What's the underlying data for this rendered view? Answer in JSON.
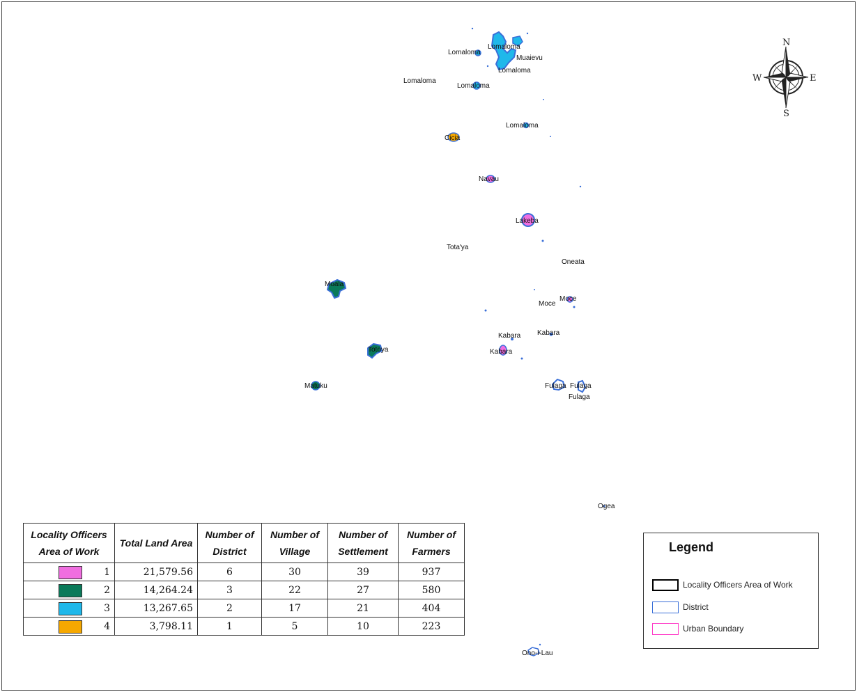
{
  "map": {
    "place_labels": [
      "Lomaloma",
      "Lomaloma",
      "Muaievu",
      "Lomaloma",
      "Lomaloma",
      "Lomaloma",
      "Lomaloma",
      "Cicia",
      "Navau",
      "Lakeba",
      "Tota'ya",
      "Oneata",
      "Moala",
      "Moce",
      "Moce",
      "Kabara",
      "Kabara",
      "Kabara",
      "Totoya",
      "Matuku",
      "Fulaga",
      "Fulaga",
      "Fulaga",
      "Ogea",
      "Ono-i-Lau"
    ],
    "colors": {
      "class_1": "#f06ee0",
      "class_2": "#0a7a5a",
      "class_3": "#1fb8ea",
      "class_4": "#f6a800",
      "district_outline": "#3a6fd8",
      "locality_outline": "#000000",
      "urban_outline": "#ff3cc8"
    }
  },
  "compass": {
    "n": "N",
    "s": "S",
    "e": "E",
    "w": "W"
  },
  "table": {
    "headers": [
      "Locality Officers Area of Work",
      "Total Land Area",
      "Number of District",
      "Number of Village",
      "Number of Settlement",
      "Number of Farmers"
    ],
    "rows": [
      {
        "class": "1",
        "color": "#f06ee0",
        "land_area": "21,579.56",
        "districts": "6",
        "villages": "30",
        "settlements": "39",
        "farmers": "937"
      },
      {
        "class": "2",
        "color": "#0a7a5a",
        "land_area": "14,264.24",
        "districts": "3",
        "villages": "22",
        "settlements": "27",
        "farmers": "580"
      },
      {
        "class": "3",
        "color": "#1fb8ea",
        "land_area": "13,267.65",
        "districts": "2",
        "villages": "17",
        "settlements": "21",
        "farmers": "404"
      },
      {
        "class": "4",
        "color": "#f6a800",
        "land_area": "3,798.11",
        "districts": "1",
        "villages": "5",
        "settlements": "10",
        "farmers": "223"
      }
    ]
  },
  "legend": {
    "title": "Legend",
    "items": [
      {
        "label": "Locality Officers Area of Work",
        "outline": "#000000"
      },
      {
        "label": "District",
        "outline": "#3a6fd8"
      },
      {
        "label": "Urban Boundary",
        "outline": "#ff3cc8"
      }
    ]
  }
}
